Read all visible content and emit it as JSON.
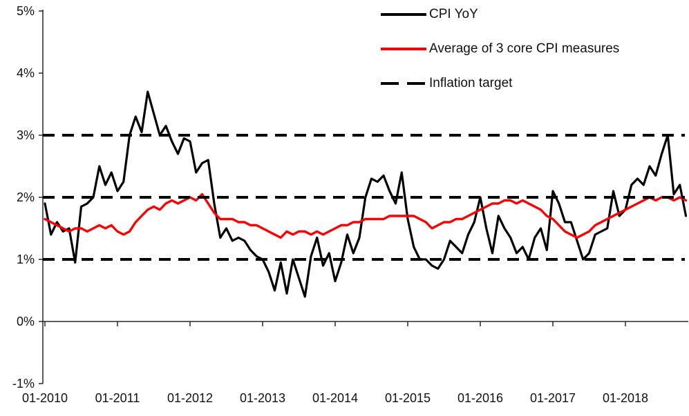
{
  "chart_data": {
    "type": "line",
    "title": "",
    "xlabel": "",
    "ylabel": "",
    "x_start": "2010-01",
    "x_frequency": "monthly",
    "x_tick_labels": [
      "01-2010",
      "01-2011",
      "01-2012",
      "01-2013",
      "01-2014",
      "01-2015",
      "01-2016",
      "01-2017",
      "01-2018"
    ],
    "y_tick_labels": [
      "5%",
      "4%",
      "3%",
      "2%",
      "1%",
      "0%",
      "-1%"
    ],
    "y_tick_values": [
      5,
      4,
      3,
      2,
      1,
      0,
      -1
    ],
    "ylim": [
      -1,
      5
    ],
    "grid": false,
    "legend_position": "top-center",
    "series": [
      {
        "name": "CPI YoY",
        "color": "#000000",
        "style": "solid",
        "values": [
          1.9,
          1.4,
          1.6,
          1.45,
          1.5,
          0.95,
          1.85,
          1.9,
          2.0,
          2.5,
          2.2,
          2.4,
          2.1,
          2.25,
          3.0,
          3.3,
          3.05,
          3.7,
          3.35,
          3.0,
          3.15,
          2.9,
          2.7,
          2.95,
          2.9,
          2.4,
          2.55,
          2.6,
          1.9,
          1.35,
          1.5,
          1.3,
          1.35,
          1.3,
          1.15,
          1.05,
          1.0,
          0.8,
          0.5,
          0.95,
          0.45,
          1.0,
          0.7,
          0.4,
          1.05,
          1.35,
          0.9,
          1.1,
          0.65,
          0.95,
          1.4,
          1.1,
          1.35,
          2.0,
          2.3,
          2.25,
          2.35,
          2.1,
          1.9,
          2.4,
          1.65,
          1.2,
          1.0,
          1.0,
          0.9,
          0.85,
          1.0,
          1.3,
          1.2,
          1.1,
          1.4,
          1.6,
          2.0,
          1.5,
          1.1,
          1.7,
          1.5,
          1.35,
          1.1,
          1.2,
          1.0,
          1.35,
          1.5,
          1.15,
          2.1,
          1.9,
          1.6,
          1.6,
          1.3,
          1.0,
          1.1,
          1.4,
          1.45,
          1.5,
          2.1,
          1.7,
          1.8,
          2.2,
          2.3,
          2.2,
          2.5,
          2.35,
          2.7,
          3.0,
          2.05,
          2.2,
          1.7
        ]
      },
      {
        "name": "Average of 3 core CPI measures",
        "color": "#ff0000",
        "style": "solid",
        "values": [
          1.65,
          1.6,
          1.55,
          1.5,
          1.45,
          1.5,
          1.5,
          1.45,
          1.5,
          1.55,
          1.5,
          1.55,
          1.45,
          1.4,
          1.45,
          1.6,
          1.7,
          1.8,
          1.85,
          1.8,
          1.9,
          1.95,
          1.9,
          1.95,
          2.0,
          1.95,
          2.05,
          1.9,
          1.75,
          1.65,
          1.65,
          1.65,
          1.6,
          1.6,
          1.55,
          1.55,
          1.5,
          1.45,
          1.4,
          1.35,
          1.45,
          1.4,
          1.45,
          1.45,
          1.4,
          1.45,
          1.4,
          1.45,
          1.5,
          1.55,
          1.55,
          1.6,
          1.6,
          1.65,
          1.65,
          1.65,
          1.65,
          1.7,
          1.7,
          1.7,
          1.7,
          1.7,
          1.65,
          1.6,
          1.5,
          1.55,
          1.6,
          1.6,
          1.65,
          1.65,
          1.7,
          1.75,
          1.8,
          1.85,
          1.9,
          1.9,
          1.95,
          1.95,
          1.9,
          1.95,
          1.9,
          1.85,
          1.8,
          1.7,
          1.65,
          1.55,
          1.45,
          1.4,
          1.35,
          1.4,
          1.45,
          1.55,
          1.6,
          1.65,
          1.7,
          1.75,
          1.8,
          1.85,
          1.9,
          1.95,
          2.0,
          1.95,
          2.0,
          2.0,
          1.95,
          2.0,
          1.95
        ]
      },
      {
        "name": "Inflation target",
        "color": "#000000",
        "style": "dashed",
        "target_values": [
          1,
          2,
          3
        ]
      }
    ]
  },
  "colors": {
    "cpi_line": "#000000",
    "core_line": "#ff0000",
    "target_line": "#000000",
    "axis": "#262626"
  }
}
